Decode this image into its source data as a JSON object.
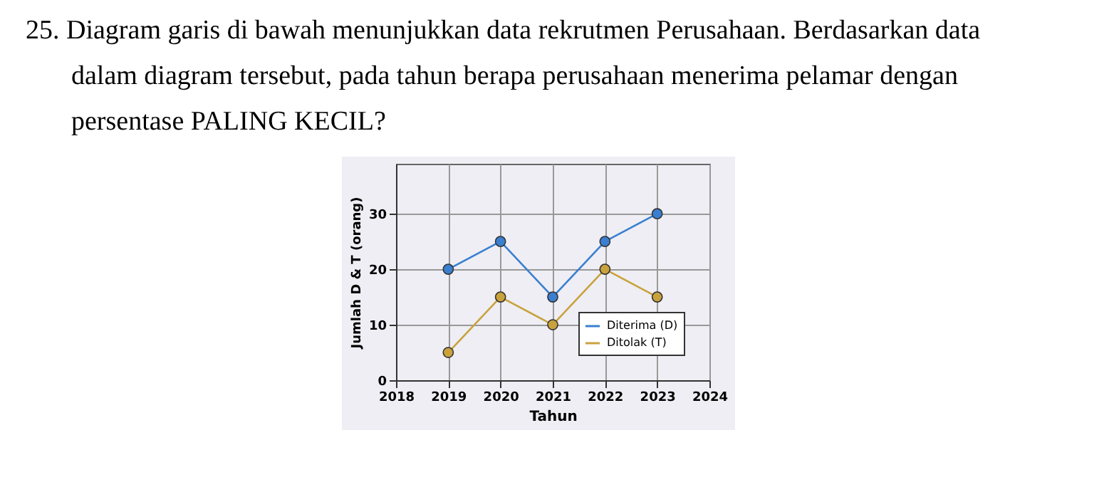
{
  "chart_data": {
    "type": "line",
    "title": "25. Diagram garis di bawah menunjukkan data rekrutmen Perusahaan. Berdasarkan data dalam diagram tersebut, pada tahun berapa perusahaan menerima pelamar dengan persentase PALING KECIL?",
    "xlabel": "Tahun",
    "ylabel": "Jumlah D & T (orang)",
    "x": [
      2019,
      2020,
      2021,
      2022,
      2023
    ],
    "series": [
      {
        "name": "Diterima (D)",
        "color": "#3a7fd0",
        "values": [
          20,
          25,
          15,
          25,
          30
        ]
      },
      {
        "name": "Ditolak (T)",
        "color": "#c9a23c",
        "values": [
          5,
          15,
          10,
          20,
          15
        ]
      }
    ],
    "xlim": [
      2018,
      2024
    ],
    "xticks": [
      2018,
      2019,
      2020,
      2021,
      2022,
      2023,
      2024
    ],
    "ylim": [
      0,
      39
    ],
    "yticks": [
      0,
      10,
      20,
      30
    ],
    "grid": true,
    "legend": "bottom right",
    "marker": "circle",
    "line_style": "solid"
  }
}
